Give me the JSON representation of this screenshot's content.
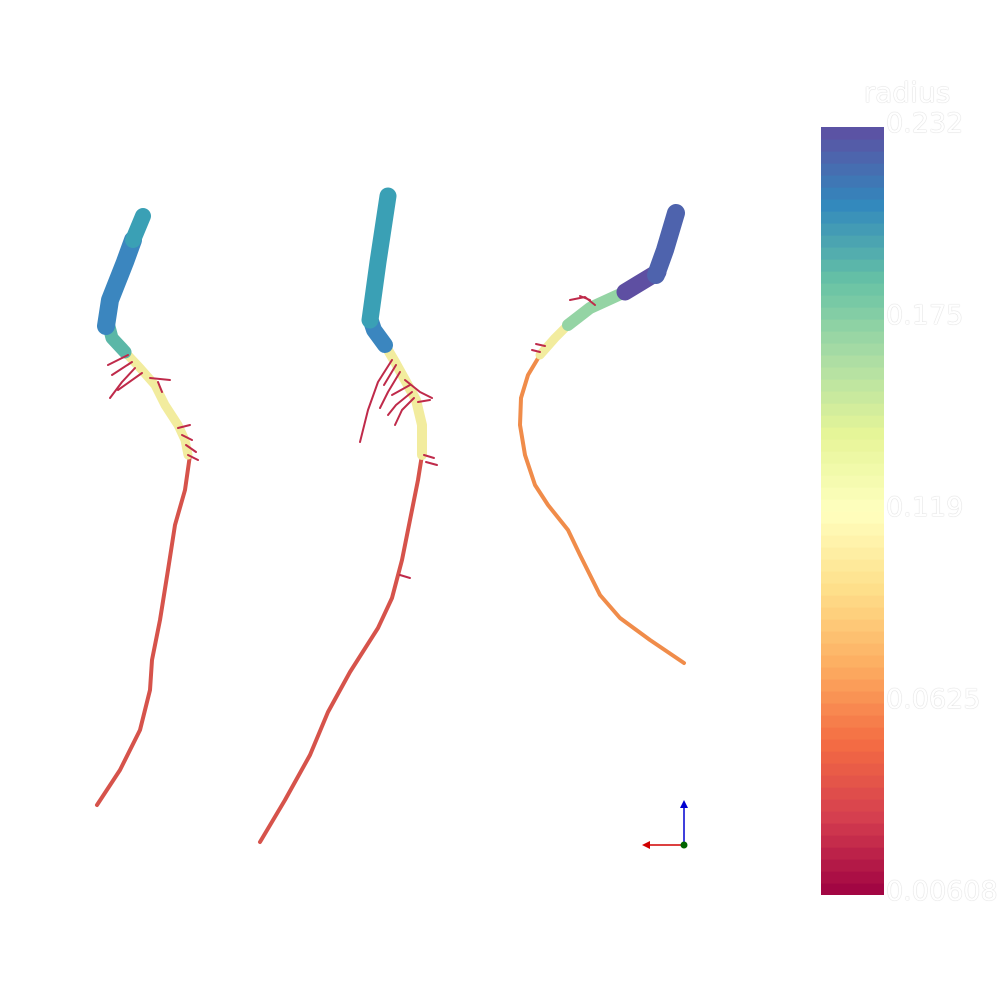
{
  "colorbar": {
    "title": "radius",
    "ticks": [
      "0.232",
      "0.175",
      "0.119",
      "0.0625",
      "0.00608"
    ],
    "stops": [
      "#9e0142",
      "#d53e4f",
      "#f46d43",
      "#fdae61",
      "#fee08b",
      "#ffffbf",
      "#e6f598",
      "#abdda4",
      "#66c2a5",
      "#3288bd",
      "#5e4fa2"
    ]
  },
  "scene": {
    "vessel_count": 3,
    "axes_colors": {
      "x": "#d00000",
      "y": "#006400",
      "z": "#0000d0"
    }
  }
}
